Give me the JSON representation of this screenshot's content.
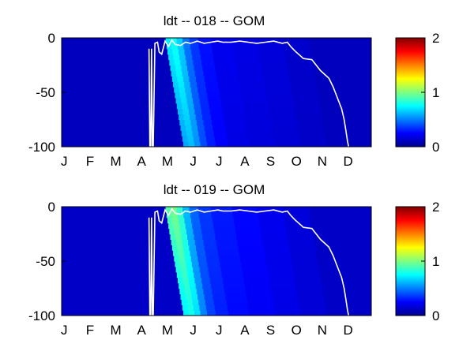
{
  "figure": {
    "panels": [
      {
        "title": "ldt -- 018 -- GOM"
      },
      {
        "title": "ldt -- 019 -- GOM"
      }
    ]
  },
  "chart_data": [
    {
      "type": "heatmap",
      "title": "ldt -- 018 -- GOM",
      "xlabel": "",
      "ylabel": "",
      "x_tick_labels": [
        "J",
        "F",
        "M",
        "A",
        "M",
        "J",
        "J",
        "A",
        "S",
        "O",
        "N",
        "D"
      ],
      "x_range_day_of_year": [
        0,
        365
      ],
      "y_ticks": [
        0,
        -50,
        -100
      ],
      "ylim": [
        -100,
        0
      ],
      "colorbar": {
        "ticks": [
          0,
          1,
          2
        ],
        "range": [
          0,
          2
        ],
        "colormap": "jet"
      },
      "field": {
        "background": 0.12,
        "bloom": [
          {
            "day_of_year": 122,
            "value": 0.72,
            "depth_extent": 100
          },
          {
            "day_of_year": 128,
            "value": 0.78,
            "depth_extent": 100
          },
          {
            "day_of_year": 135,
            "value": 0.66,
            "depth_extent": 100
          },
          {
            "day_of_year": 142,
            "value": 0.48,
            "depth_extent": 100
          },
          {
            "day_of_year": 150,
            "value": 0.36,
            "depth_extent": 100
          },
          {
            "day_of_year": 160,
            "value": 0.28,
            "depth_extent": 100
          },
          {
            "day_of_year": 175,
            "value": 0.22,
            "depth_extent": 100
          },
          {
            "day_of_year": 200,
            "value": 0.2,
            "depth_extent": 100
          },
          {
            "day_of_year": 230,
            "value": 0.18,
            "depth_extent": 100
          },
          {
            "day_of_year": 260,
            "value": 0.15,
            "depth_extent": 100
          }
        ],
        "bloom_slope_days_per_100m": 22
      },
      "mixed_layer_depth": {
        "day_of_year": [
          103,
          104,
          105,
          106,
          107,
          108,
          110,
          113,
          115,
          118,
          122,
          126,
          130,
          134,
          140,
          146,
          152,
          160,
          168,
          176,
          184,
          190,
          200,
          210,
          220,
          230,
          240,
          250,
          260,
          266,
          270,
          275,
          285,
          295,
          305,
          315,
          320,
          325,
          330,
          333,
          335,
          337,
          338,
          338
        ],
        "depth": [
          -10,
          -100,
          -100,
          -10,
          -100,
          -100,
          -5,
          -4,
          -13,
          -15,
          -3,
          -8,
          -2,
          -6,
          -7,
          -4,
          -5,
          -3,
          -5,
          -4,
          -3,
          -4,
          -4,
          -3,
          -4,
          -5,
          -4,
          -3,
          -5,
          -4,
          -8,
          -12,
          -19,
          -20,
          -30,
          -37,
          -45,
          -55,
          -65,
          -75,
          -85,
          -95,
          -99,
          -100
        ]
      }
    },
    {
      "type": "heatmap",
      "title": "ldt -- 019 -- GOM",
      "xlabel": "",
      "ylabel": "",
      "x_tick_labels": [
        "J",
        "F",
        "M",
        "A",
        "M",
        "J",
        "J",
        "A",
        "S",
        "O",
        "N",
        "D"
      ],
      "x_range_day_of_year": [
        0,
        365
      ],
      "y_ticks": [
        0,
        -50,
        -100
      ],
      "ylim": [
        -100,
        0
      ],
      "colorbar": {
        "ticks": [
          0,
          1,
          2
        ],
        "range": [
          0,
          2
        ],
        "colormap": "jet"
      },
      "field": {
        "background": 0.14,
        "bloom": [
          {
            "day_of_year": 122,
            "value": 0.92,
            "depth_extent": 100
          },
          {
            "day_of_year": 128,
            "value": 0.98,
            "depth_extent": 100
          },
          {
            "day_of_year": 135,
            "value": 0.86,
            "depth_extent": 100
          },
          {
            "day_of_year": 142,
            "value": 0.62,
            "depth_extent": 100
          },
          {
            "day_of_year": 150,
            "value": 0.45,
            "depth_extent": 100
          },
          {
            "day_of_year": 160,
            "value": 0.36,
            "depth_extent": 100
          },
          {
            "day_of_year": 175,
            "value": 0.3,
            "depth_extent": 100
          },
          {
            "day_of_year": 200,
            "value": 0.26,
            "depth_extent": 100
          },
          {
            "day_of_year": 230,
            "value": 0.22,
            "depth_extent": 100
          },
          {
            "day_of_year": 260,
            "value": 0.18,
            "depth_extent": 100
          }
        ],
        "bloom_slope_days_per_100m": 22
      },
      "mixed_layer_depth": {
        "day_of_year": [
          103,
          104,
          105,
          106,
          107,
          108,
          110,
          113,
          115,
          118,
          122,
          126,
          130,
          134,
          140,
          146,
          152,
          160,
          168,
          176,
          184,
          190,
          200,
          210,
          220,
          230,
          240,
          250,
          260,
          266,
          270,
          275,
          285,
          295,
          305,
          315,
          320,
          325,
          330,
          333,
          335,
          337,
          338,
          338
        ],
        "depth": [
          -10,
          -100,
          -100,
          -10,
          -100,
          -100,
          -5,
          -4,
          -13,
          -15,
          -3,
          -8,
          -2,
          -6,
          -7,
          -4,
          -5,
          -3,
          -5,
          -4,
          -3,
          -4,
          -4,
          -3,
          -4,
          -5,
          -4,
          -3,
          -5,
          -4,
          -8,
          -12,
          -19,
          -20,
          -30,
          -37,
          -45,
          -55,
          -65,
          -75,
          -85,
          -95,
          -99,
          -100
        ]
      }
    }
  ]
}
